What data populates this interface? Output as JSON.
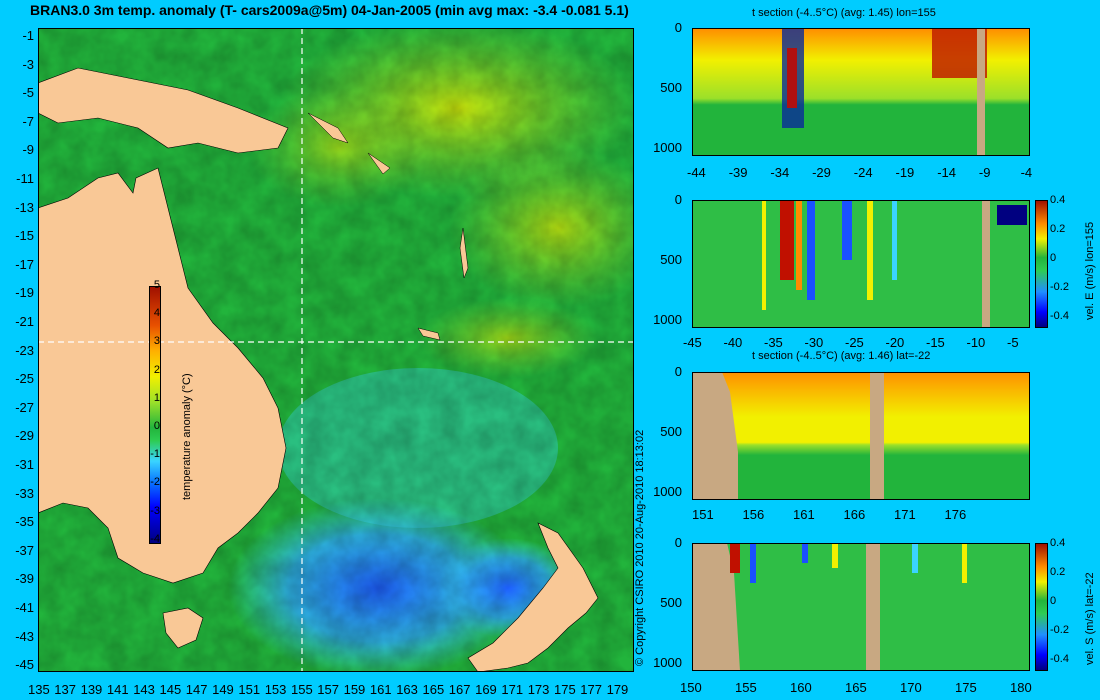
{
  "title": "BRAN3.0 3m temp. anomaly (T- cars2009a@5m) 04-Jan-2005 (min avg max: -3.4 -0.081 5.1)",
  "copyright": "© Copyright CSIRO 2010    20-Aug-2010 18:13:02",
  "colors": {
    "background": "#00ccff",
    "land": "#f9c896",
    "ocean_base": "#22b43c",
    "section_land": "#c8a882"
  },
  "chart_data": [
    {
      "type": "heatmap",
      "title": "BRAN3.0 3m temp. anomaly (T- cars2009a@5m) 04-Jan-2005 (min avg max: -3.4 -0.081 5.1)",
      "x_ticks": [
        "135",
        "137",
        "139",
        "141",
        "143",
        "145",
        "147",
        "149",
        "151",
        "153",
        "155",
        "157",
        "159",
        "161",
        "163",
        "165",
        "167",
        "169",
        "171",
        "173",
        "175",
        "177",
        "179"
      ],
      "y_ticks": [
        "-1",
        "-3",
        "-5",
        "-7",
        "-9",
        "-11",
        "-13",
        "-15",
        "-17",
        "-19",
        "-21",
        "-23",
        "-25",
        "-27",
        "-29",
        "-31",
        "-33",
        "-35",
        "-37",
        "-39",
        "-41",
        "-43",
        "-45"
      ],
      "crosshair": {
        "lon": 155,
        "lat": -22
      },
      "colorbar": {
        "label": "temperature anomaly (°C)",
        "ticks": [
          "5",
          "4",
          "3",
          "2",
          "1",
          "0",
          "-1",
          "-2",
          "-3",
          "-4"
        ]
      },
      "stats": {
        "min": -3.4,
        "avg": -0.081,
        "max": 5.1
      }
    },
    {
      "type": "heatmap",
      "title": "t section (-4..5°C)  (avg: 1.45) lon=155",
      "x_ticks": [
        "-44",
        "-39",
        "-34",
        "-29",
        "-24",
        "-19",
        "-14",
        "-9",
        "-4"
      ],
      "y_ticks": [
        "0",
        "500",
        "1000"
      ]
    },
    {
      "type": "heatmap",
      "title": "",
      "x_ticks": [
        "-45",
        "-40",
        "-35",
        "-30",
        "-25",
        "-20",
        "-15",
        "-10",
        "-5"
      ],
      "y_ticks": [
        "0",
        "500",
        "1000"
      ],
      "colorbar": {
        "label": "vel. E (m/s) lon=155",
        "ticks": [
          "0.4",
          "0.2",
          "0",
          "-0.2",
          "-0.4"
        ]
      }
    },
    {
      "type": "heatmap",
      "title": "t section (-4..5°C)  (avg: 1.46) lat=-22",
      "x_ticks": [
        "151",
        "156",
        "161",
        "166",
        "171",
        "176"
      ],
      "y_ticks": [
        "0",
        "500",
        "1000"
      ]
    },
    {
      "type": "heatmap",
      "title": "",
      "x_ticks": [
        "150",
        "155",
        "160",
        "165",
        "170",
        "175",
        "180"
      ],
      "y_ticks": [
        "0",
        "500",
        "1000"
      ],
      "colorbar": {
        "label": "vel. S (m/s) lat=-22",
        "ticks": [
          "0.4",
          "0.2",
          "0",
          "-0.2",
          "-0.4"
        ]
      }
    }
  ]
}
